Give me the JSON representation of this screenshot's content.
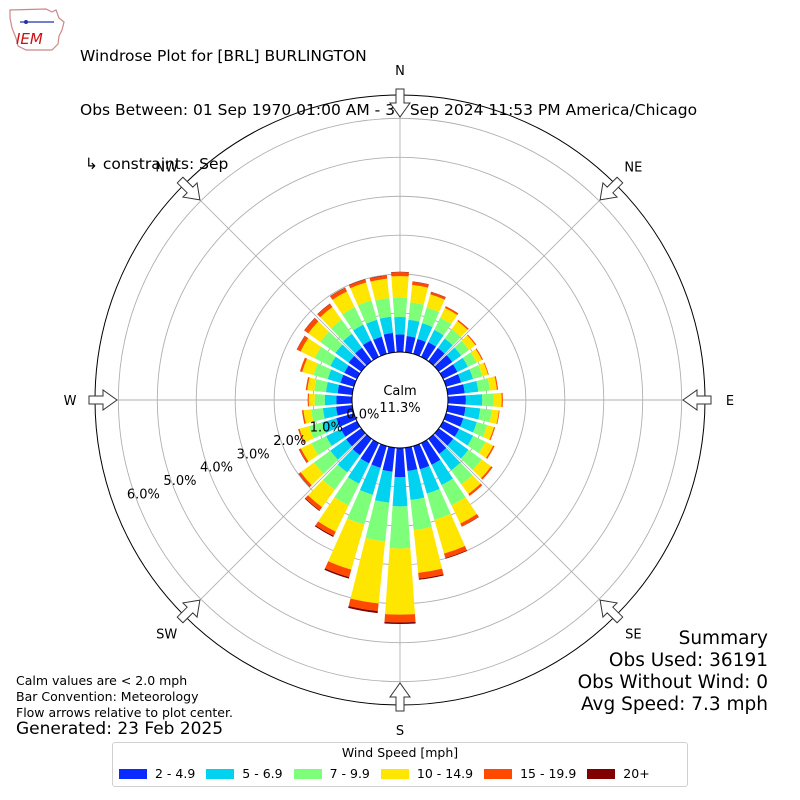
{
  "header": {
    "line1": "Windrose Plot for [BRL] BURLINGTON",
    "line2": "Obs Between: 01 Sep 1970 01:00 AM - 30 Sep 2024 11:53 PM America/Chicago",
    "line3": " ↳ constraints: Sep",
    "logo_text": "IEM"
  },
  "summary": {
    "title": "Summary",
    "obs_used": "Obs Used: 36191",
    "obs_without_wind": "Obs Without Wind: 0",
    "avg_speed": "Avg Speed: 7.3 mph"
  },
  "notes": {
    "calm": "Calm values are < 2.0 mph",
    "convention": "Bar Convention: Meteorology",
    "arrows": "Flow arrows relative to plot center.",
    "generated": "Generated: 23 Feb 2025"
  },
  "center": {
    "label": "Calm",
    "value": "11.3%"
  },
  "chart_data": {
    "type": "windrose",
    "title": "Windrose Plot for [BRL] BURLINGTON",
    "directions_deg": [
      0,
      10,
      20,
      30,
      40,
      50,
      60,
      70,
      80,
      90,
      100,
      110,
      120,
      130,
      140,
      150,
      160,
      170,
      180,
      190,
      200,
      210,
      220,
      230,
      240,
      250,
      260,
      270,
      280,
      290,
      300,
      310,
      320,
      330,
      340,
      350
    ],
    "compass_labels": [
      "N",
      "NE",
      "E",
      "SE",
      "S",
      "SW",
      "W",
      "NW"
    ],
    "radial_ticks": [
      "0.0%",
      "1.0%",
      "2.0%",
      "3.0%",
      "4.0%",
      "5.0%",
      "6.0%"
    ],
    "rmax": 6.6,
    "legend_title": "Wind Speed [mph]",
    "series": [
      {
        "name": "2 - 4.9",
        "color": "#0a2bff",
        "values": [
          0.45,
          0.42,
          0.4,
          0.42,
          0.42,
          0.43,
          0.41,
          0.4,
          0.44,
          0.46,
          0.46,
          0.46,
          0.46,
          0.46,
          0.48,
          0.62,
          0.62,
          0.6,
          0.75,
          0.62,
          0.58,
          0.58,
          0.52,
          0.48,
          0.46,
          0.47,
          0.42,
          0.4,
          0.38,
          0.36,
          0.36,
          0.4,
          0.43,
          0.47,
          0.46,
          0.5
        ]
      },
      {
        "name": "5 - 6.9",
        "color": "#00d2f0",
        "values": [
          0.45,
          0.42,
          0.42,
          0.35,
          0.3,
          0.28,
          0.3,
          0.32,
          0.35,
          0.42,
          0.38,
          0.36,
          0.4,
          0.48,
          0.52,
          0.58,
          0.65,
          0.75,
          0.75,
          0.8,
          0.72,
          0.58,
          0.55,
          0.5,
          0.42,
          0.38,
          0.34,
          0.3,
          0.3,
          0.34,
          0.4,
          0.42,
          0.44,
          0.45,
          0.45,
          0.42
        ]
      },
      {
        "name": "7 - 9.9",
        "color": "#7dff7a",
        "values": [
          0.5,
          0.45,
          0.42,
          0.35,
          0.3,
          0.25,
          0.25,
          0.25,
          0.3,
          0.3,
          0.3,
          0.28,
          0.35,
          0.42,
          0.45,
          0.58,
          0.7,
          0.78,
          1.08,
          1.0,
          0.8,
          0.62,
          0.55,
          0.52,
          0.42,
          0.35,
          0.3,
          0.26,
          0.3,
          0.38,
          0.45,
          0.48,
          0.45,
          0.5,
          0.52,
          0.48
        ]
      },
      {
        "name": "10 - 14.9",
        "color": "#ffe600",
        "values": [
          0.55,
          0.45,
          0.35,
          0.28,
          0.25,
          0.2,
          0.15,
          0.15,
          0.18,
          0.2,
          0.18,
          0.18,
          0.22,
          0.3,
          0.3,
          0.52,
          0.9,
          1.1,
          1.7,
          1.6,
          1.2,
          0.75,
          0.55,
          0.42,
          0.3,
          0.25,
          0.2,
          0.15,
          0.18,
          0.3,
          0.4,
          0.38,
          0.4,
          0.45,
          0.48,
          0.5
        ]
      },
      {
        "name": "15 - 19.9",
        "color": "#ff4a00",
        "values": [
          0.1,
          0.08,
          0.06,
          0.05,
          0.04,
          0.03,
          0.03,
          0.02,
          0.03,
          0.03,
          0.02,
          0.03,
          0.04,
          0.05,
          0.06,
          0.08,
          0.12,
          0.15,
          0.2,
          0.2,
          0.2,
          0.12,
          0.1,
          0.06,
          0.05,
          0.04,
          0.04,
          0.03,
          0.04,
          0.06,
          0.1,
          0.12,
          0.1,
          0.1,
          0.08,
          0.08
        ]
      },
      {
        "name": "20+",
        "color": "#800000",
        "values": [
          0.01,
          0.01,
          0.01,
          0.0,
          0.0,
          0.0,
          0.0,
          0.0,
          0.0,
          0.0,
          0.0,
          0.0,
          0.0,
          0.0,
          0.0,
          0.01,
          0.02,
          0.03,
          0.04,
          0.05,
          0.04,
          0.03,
          0.02,
          0.01,
          0.01,
          0.0,
          0.0,
          0.0,
          0.0,
          0.0,
          0.01,
          0.01,
          0.01,
          0.01,
          0.01,
          0.01
        ]
      }
    ]
  }
}
